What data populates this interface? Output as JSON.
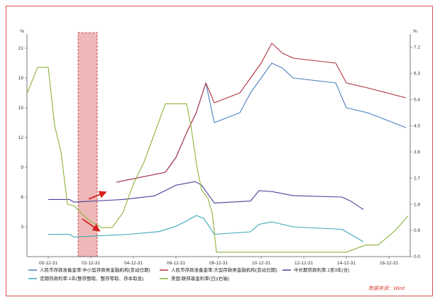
{
  "chart_data": {
    "type": "line",
    "axes": {
      "left_unit": "%",
      "right_unit": "%",
      "left_ticks": [
        "21",
        "18",
        "15",
        "12",
        "9",
        "6",
        "3"
      ],
      "right_ticks": [
        "7.2",
        "6.3",
        "5.4",
        "4.5",
        "3.6",
        "2.7",
        "1.8",
        "0.9",
        "0.0"
      ],
      "left_range": [
        0,
        22
      ],
      "right_range": [
        0,
        7.5
      ],
      "x_ticks": [
        "00-12-31",
        "02-12-31",
        "04-12-31",
        "06-12-31",
        "08-12-31",
        "10-12-31",
        "12-12-31",
        "14-12-31",
        "16-12-31"
      ],
      "x_range": [
        2000.0,
        2018.0
      ]
    },
    "series": [
      {
        "name": "人民币存款准备金率:中小型存款类金融机构(变动日期)",
        "color": "#4a7fbf",
        "axis": "left",
        "x": [
          2004.2,
          2006.5,
          2007.0,
          2007.5,
          2007.95,
          2008.4,
          2008.8,
          2010.0,
          2010.5,
          2011.0,
          2011.5,
          2012.0,
          2012.5,
          2014.5,
          2015.0,
          2016.0,
          2017.8
        ],
        "y": [
          7.5,
          8.5,
          10.0,
          12.5,
          14.5,
          17.5,
          13.5,
          14.5,
          16.5,
          18.0,
          19.5,
          19.0,
          18.0,
          17.5,
          15.0,
          14.5,
          13.0
        ]
      },
      {
        "name": "人民币存款准备金率:大型存款类金融机构(变动日期)",
        "color": "#b03040",
        "axis": "left",
        "x": [
          2004.2,
          2006.5,
          2007.0,
          2007.5,
          2007.95,
          2008.4,
          2008.8,
          2010.0,
          2010.5,
          2011.0,
          2011.5,
          2012.0,
          2012.5,
          2014.5,
          2015.0,
          2016.0,
          2017.8
        ],
        "y": [
          7.5,
          8.5,
          10.0,
          12.5,
          14.5,
          17.5,
          15.5,
          16.5,
          18.0,
          19.5,
          21.5,
          20.5,
          20.0,
          19.5,
          17.5,
          17.0,
          16.0
        ]
      },
      {
        "name": "中长期贷款利率:1至3年(含)",
        "color": "#4a3f9a",
        "axis": "left",
        "x": [
          2001.0,
          2002.0,
          2002.2,
          2004.5,
          2006.0,
          2007.0,
          2007.9,
          2008.2,
          2008.8,
          2010.5,
          2010.9,
          2011.5,
          2012.5,
          2014.8,
          2015.2,
          2015.8
        ],
        "y": [
          5.76,
          5.76,
          5.49,
          5.76,
          6.12,
          7.2,
          7.56,
          7.2,
          5.4,
          5.6,
          6.65,
          6.56,
          6.15,
          6.0,
          5.6,
          4.75
        ]
      },
      {
        "name": "定期存款利率:1年(整存整取、整存零取、存本取息)",
        "color": "#3aa6b9",
        "axis": "left",
        "x": [
          2001.0,
          2002.0,
          2002.2,
          2004.8,
          2006.2,
          2007.0,
          2007.5,
          2007.95,
          2008.3,
          2008.8,
          2010.5,
          2010.9,
          2011.5,
          2012.5,
          2014.8,
          2015.2,
          2015.8
        ],
        "y": [
          2.25,
          2.25,
          1.98,
          2.25,
          2.52,
          3.06,
          3.6,
          4.14,
          3.87,
          2.25,
          2.5,
          3.25,
          3.5,
          3.0,
          2.75,
          2.25,
          1.5
        ]
      },
      {
        "name": "美国:联邦基金利率(日)(右轴)",
        "color": "#8db33a",
        "axis": "right",
        "x": [
          2000.0,
          2000.5,
          2001.0,
          2001.3,
          2001.6,
          2001.9,
          2002.2,
          2002.9,
          2003.5,
          2004.0,
          2004.5,
          2005.0,
          2005.5,
          2006.0,
          2006.5,
          2007.5,
          2007.7,
          2008.0,
          2008.2,
          2008.5,
          2008.7,
          2008.9,
          2009.5,
          2012.0,
          2015.0,
          2015.9,
          2016.5,
          2016.9,
          2017.3,
          2017.6,
          2017.9
        ],
        "y": [
          5.6,
          6.5,
          6.5,
          4.5,
          3.6,
          1.8,
          1.75,
          1.25,
          1.0,
          1.0,
          1.5,
          2.5,
          3.25,
          4.25,
          5.25,
          5.25,
          4.5,
          3.0,
          2.3,
          2.0,
          1.5,
          0.15,
          0.15,
          0.15,
          0.15,
          0.4,
          0.4,
          0.65,
          0.9,
          1.15,
          1.4
        ]
      }
    ],
    "highlight_range": {
      "x": [
        2002.4,
        2003.3
      ],
      "color": "#e8a0a0"
    },
    "annotations": {
      "arrows": [
        {
          "from_x": 2002.9,
          "from_y": 5.8,
          "to_x": 2003.7,
          "to_y": 6.5,
          "color": "#d62020"
        },
        {
          "from_x": 2002.6,
          "from_y": 3.8,
          "to_x": 2003.4,
          "to_y": 2.6,
          "color": "#d62020"
        }
      ]
    },
    "grid": false,
    "legend_position": "bottom",
    "source_note": "数据来源：Wind"
  }
}
